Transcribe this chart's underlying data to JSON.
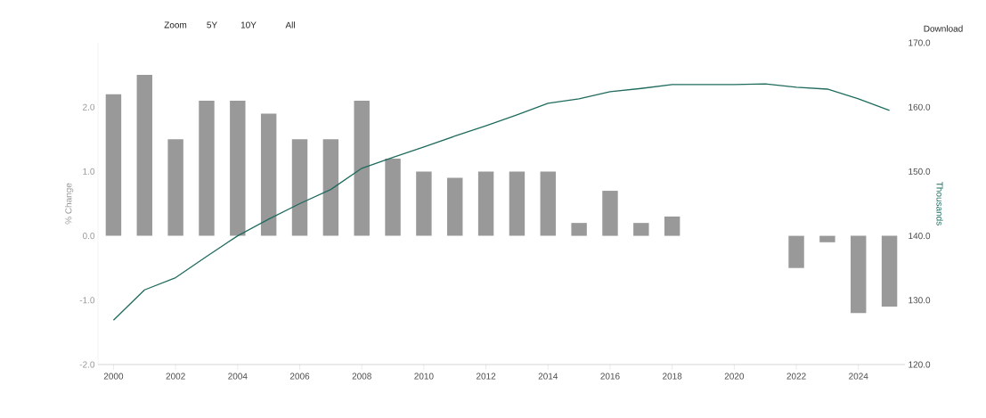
{
  "chart_data": {
    "type": "bar",
    "ylabel": "% Change",
    "y2label": "Thousands",
    "annotations": [
      "Zoom",
      "5Y",
      "10Y",
      "All",
      "Download"
    ],
    "x": [
      2000,
      2001,
      2002,
      2003,
      2004,
      2005,
      2006,
      2007,
      2008,
      2009,
      2010,
      2011,
      2012,
      2013,
      2014,
      2015,
      2016,
      2017,
      2018,
      2019,
      2020,
      2021,
      2022,
      2023,
      2024,
      2025
    ],
    "series": [
      {
        "type": "bar",
        "color": "#999999",
        "values": [
          2.2,
          2.5,
          1.5,
          2.1,
          2.1,
          1.9,
          1.5,
          1.5,
          2.1,
          1.2,
          1.0,
          0.9,
          1.0,
          1.0,
          1.0,
          0.2,
          0.7,
          0.2,
          0.3,
          null,
          null,
          null,
          -0.5,
          -0.1,
          -1.2,
          -1.1
        ]
      },
      {
        "type": "line",
        "axis": "y2",
        "color": "#1f6b5e",
        "values": [
          126.9,
          131.6,
          133.5,
          136.8,
          140.0,
          142.6,
          145.0,
          147.2,
          150.5,
          152.2,
          153.8,
          155.5,
          157.1,
          158.8,
          160.6,
          161.3,
          162.4,
          162.9,
          163.5,
          163.5,
          163.5,
          163.6,
          163.1,
          162.8,
          161.3,
          159.5
        ]
      }
    ],
    "xlim": [
      1999.5,
      2025.5
    ],
    "xticks": [
      2000,
      2002,
      2004,
      2006,
      2008,
      2010,
      2012,
      2014,
      2016,
      2018,
      2020,
      2022,
      2024
    ],
    "ylim": [
      -2,
      3
    ],
    "yticks": [
      {
        "value": -2,
        "label": "-2.0"
      },
      {
        "value": -1,
        "label": "-1.0"
      },
      {
        "value": 0,
        "label": "0.0"
      },
      {
        "value": 1,
        "label": "1.0"
      },
      {
        "value": 2,
        "label": "2.0"
      }
    ],
    "y2lim": [
      120,
      170
    ],
    "y2ticks": [
      {
        "value": 120,
        "label": "120.0"
      },
      {
        "value": 130,
        "label": "130.0"
      },
      {
        "value": 140,
        "label": "140.0"
      },
      {
        "value": 150,
        "label": "150.0"
      },
      {
        "value": 160,
        "label": "160.0"
      },
      {
        "value": 170,
        "label": "170.0"
      }
    ],
    "grid": false,
    "legend": false
  }
}
